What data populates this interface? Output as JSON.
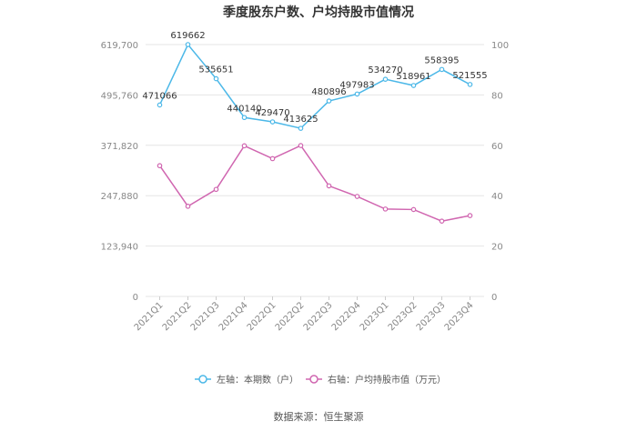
{
  "chart_data": {
    "type": "line",
    "title": "季度股东户数、户均持股市值情况",
    "categories": [
      "2021Q1",
      "2021Q2",
      "2021Q3",
      "2021Q4",
      "2022Q1",
      "2022Q2",
      "2022Q3",
      "2022Q4",
      "2023Q1",
      "2023Q2",
      "2023Q3",
      "2023Q4"
    ],
    "left_axis": {
      "ticks": [
        "0",
        "123,940",
        "247,880",
        "371,820",
        "495,760",
        "619,700"
      ],
      "range": [
        0,
        619700
      ]
    },
    "right_axis": {
      "ticks": [
        "0",
        "20",
        "40",
        "60",
        "80",
        "100"
      ],
      "range": [
        0,
        100
      ]
    },
    "series": [
      {
        "name": "左轴：本期数（户）",
        "axis": "left",
        "color": "#4cb8e8",
        "values": [
          471066,
          619662,
          535651,
          440140,
          429470,
          413625,
          480896,
          497983,
          534270,
          518961,
          558395,
          521555
        ],
        "labels": [
          "471066",
          "619662",
          "535651",
          "440140",
          "429470",
          "413625",
          "480896",
          "497983",
          "534270",
          "518961",
          "558395",
          "521555"
        ]
      },
      {
        "name": "右轴：户均持股市值（万元）",
        "axis": "right",
        "color": "#d066b0",
        "values": [
          51.9,
          35.8,
          42.5,
          59.8,
          54.7,
          59.9,
          43.9,
          39.7,
          34.7,
          34.5,
          29.9,
          32.1
        ]
      }
    ],
    "grid": true,
    "legend": "bottom"
  },
  "source": "数据来源：恒生聚源"
}
